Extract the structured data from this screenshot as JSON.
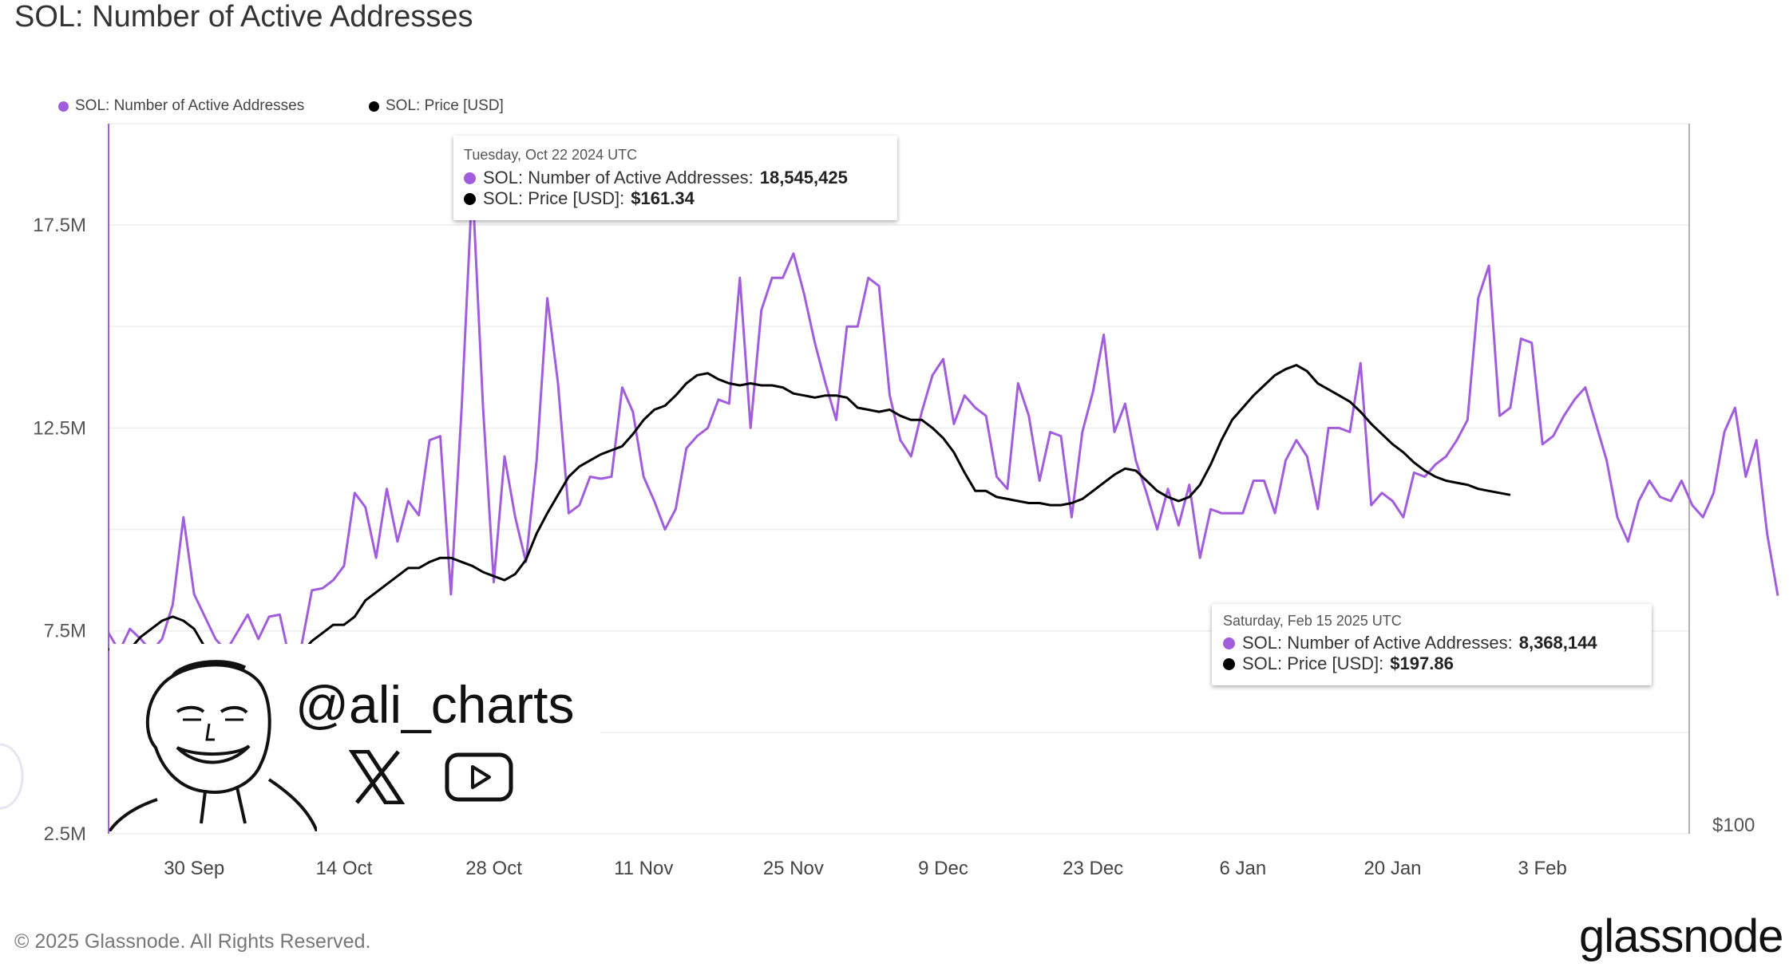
{
  "title": "SOL: Number of Active Addresses",
  "legend": [
    {
      "label": "SOL: Number of Active Addresses",
      "color": "#a25ddc"
    },
    {
      "label": "SOL: Price [USD]",
      "color": "#000000"
    }
  ],
  "tooltips": [
    {
      "date": "Tuesday, Oct 22 2024 UTC",
      "series1_label": "SOL: Number of Active Addresses:",
      "series1_value": "18,545,425",
      "series2_label": "SOL: Price [USD]:",
      "series2_value": "$161.34"
    },
    {
      "date": "Saturday, Feb 15 2025 UTC",
      "series1_label": "SOL: Number of Active Addresses:",
      "series1_value": "8,368,144",
      "series2_label": "SOL: Price [USD]:",
      "series2_value": "$197.86"
    }
  ],
  "watermark": {
    "handle": "@ali_charts",
    "icons": [
      "x-logo-icon",
      "youtube-icon"
    ]
  },
  "copyright": "© 2025 Glassnode. All Rights Reserved.",
  "brand": "glassnode",
  "colors": {
    "addresses": "#a25ddc",
    "price": "#000000",
    "grid": "#eeeeee",
    "axis": "#a25ddc"
  },
  "chart_data": {
    "type": "line",
    "x_start": "2024-09-22",
    "x_end": "2025-02-15",
    "x_ticks": [
      "30 Sep",
      "14 Oct",
      "28 Oct",
      "11 Nov",
      "25 Nov",
      "9 Dec",
      "23 Dec",
      "6 Jan",
      "20 Jan",
      "3 Feb"
    ],
    "x_tick_dates": [
      "2024-09-30",
      "2024-10-14",
      "2024-10-28",
      "2024-11-11",
      "2024-11-25",
      "2024-12-09",
      "2024-12-23",
      "2025-01-06",
      "2025-01-20",
      "2025-02-03"
    ],
    "y_left_ticks": [
      "2.5M",
      "7.5M",
      "12.5M",
      "17.5M"
    ],
    "y_left_range": [
      2500000,
      20000000
    ],
    "y_right_label": "$100",
    "grid": true,
    "legend_position": "top-left",
    "series": [
      {
        "name": "SOL: Number of Active Addresses",
        "axis": "left",
        "values": [
          7450000,
          7000000,
          7550000,
          7300000,
          7000000,
          7300000,
          8150000,
          10300000,
          8400000,
          7850000,
          7300000,
          7000000,
          7450000,
          7900000,
          7300000,
          7850000,
          7900000,
          6700000,
          7100000,
          8500000,
          8550000,
          8750000,
          9100000,
          10900000,
          10550000,
          9300000,
          11000000,
          9700000,
          10700000,
          10350000,
          12200000,
          12300000,
          8400000,
          13000000,
          18545425,
          13000000,
          8700000,
          11800000,
          10300000,
          9200000,
          11700000,
          15700000,
          13600000,
          10400000,
          10600000,
          11300000,
          11250000,
          11300000,
          13500000,
          12900000,
          11300000,
          10700000,
          10000000,
          10500000,
          12000000,
          12300000,
          12500000,
          13200000,
          13100000,
          16200000,
          12500000,
          15400000,
          16200000,
          16200000,
          16800000,
          15800000,
          14600000,
          13600000,
          12700000,
          15000000,
          15000000,
          16200000,
          16000000,
          13300000,
          12200000,
          11800000,
          12900000,
          13800000,
          14200000,
          12600000,
          13300000,
          13000000,
          12800000,
          11300000,
          11000000,
          13600000,
          12800000,
          11200000,
          12400000,
          12300000,
          10300000,
          12400000,
          13400000,
          14800000,
          12400000,
          13100000,
          11700000,
          10900000,
          10000000,
          11000000,
          10100000,
          11100000,
          9300000,
          10500000,
          10400000,
          10400000,
          10400000,
          11200000,
          11200000,
          10400000,
          11700000,
          12200000,
          11800000,
          10500000,
          12500000,
          12500000,
          12400000,
          14100000,
          10600000,
          10900000,
          10700000,
          10300000,
          11400000,
          11300000,
          11600000,
          11800000,
          12200000,
          12700000,
          15700000,
          16500000,
          12800000,
          13000000,
          14700000,
          14600000,
          12100000,
          12300000,
          12800000,
          13200000,
          13500000,
          12600000,
          11700000,
          10300000,
          9700000,
          10700000,
          11200000,
          10800000,
          10700000,
          11200000,
          10600000,
          10300000,
          10900000,
          12400000,
          13000000,
          11300000,
          12200000,
          9900000,
          8368144
        ]
      },
      {
        "name": "SOL: Price [USD]",
        "axis": "right",
        "values": [
          7050000,
          7000000,
          7050000,
          7350000,
          7550000,
          7750000,
          7850000,
          7750000,
          7550000,
          7100000,
          6900000,
          6750000,
          6600000,
          6450000,
          6800000,
          6600000,
          6650000,
          6700000,
          6950000,
          7250000,
          7450000,
          7650000,
          7650000,
          7850000,
          8250000,
          8450000,
          8650000,
          8850000,
          9050000,
          9050000,
          9200000,
          9300000,
          9300000,
          9200000,
          9100000,
          8950000,
          8850000,
          8750000,
          8900000,
          9250000,
          9900000,
          10400000,
          10850000,
          11300000,
          11550000,
          11700000,
          11850000,
          11950000,
          12050000,
          12350000,
          12700000,
          12950000,
          13050000,
          13300000,
          13600000,
          13800000,
          13850000,
          13700000,
          13600000,
          13550000,
          13600000,
          13550000,
          13550000,
          13500000,
          13350000,
          13300000,
          13250000,
          13300000,
          13300000,
          13250000,
          13000000,
          12950000,
          12900000,
          12950000,
          12800000,
          12700000,
          12700000,
          12500000,
          12250000,
          11900000,
          11400000,
          10950000,
          10950000,
          10800000,
          10750000,
          10700000,
          10650000,
          10650000,
          10600000,
          10600000,
          10650000,
          10750000,
          10950000,
          11150000,
          11350000,
          11500000,
          11450000,
          11200000,
          10950000,
          10800000,
          10700000,
          10800000,
          11100000,
          11600000,
          12200000,
          12700000,
          13000000,
          13300000,
          13550000,
          13800000,
          13950000,
          14050000,
          13900000,
          13600000,
          13450000,
          13300000,
          13150000,
          12900000,
          12600000,
          12350000,
          12100000,
          11900000,
          11650000,
          11450000,
          11300000,
          11200000,
          11150000,
          11100000,
          11000000,
          10950000,
          10900000,
          10850000
        ]
      }
    ]
  }
}
